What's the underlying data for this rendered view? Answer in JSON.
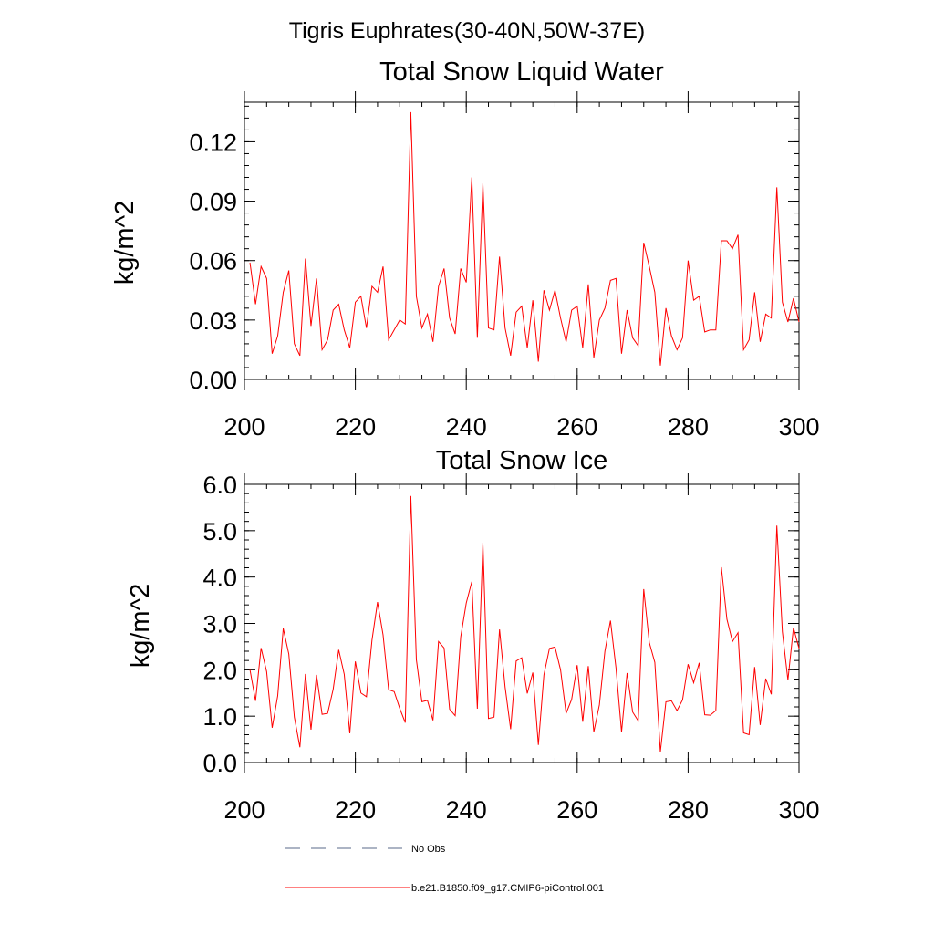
{
  "page_title": "Tigris Euphrates(30-40N,50W-37E)",
  "chart_data": [
    {
      "type": "line",
      "title": "Total Snow Liquid Water",
      "xlabel": "",
      "ylabel": "kg/m^2",
      "xlim": [
        200,
        300
      ],
      "ylim": [
        0,
        0.14
      ],
      "xticks": [
        200,
        220,
        240,
        260,
        280,
        300
      ],
      "xtick_labels": [
        "200",
        "220",
        "240",
        "260",
        "280",
        "300"
      ],
      "yticks": [
        0,
        0.03,
        0.06,
        0.09,
        0.12
      ],
      "ytick_labels": [
        "0.00",
        "0.03",
        "0.06",
        "0.09",
        "0.12"
      ],
      "series": [
        {
          "name": "b.e21.B1850.f09_g17.CMIP6-piControl.001",
          "color": "#ff0000",
          "x_start": 201,
          "x_step": 1,
          "values": [
            0.059,
            0.038,
            0.057,
            0.051,
            0.013,
            0.022,
            0.044,
            0.055,
            0.018,
            0.012,
            0.061,
            0.027,
            0.051,
            0.015,
            0.02,
            0.035,
            0.038,
            0.025,
            0.016,
            0.039,
            0.042,
            0.026,
            0.047,
            0.044,
            0.057,
            0.02,
            0.025,
            0.03,
            0.028,
            0.135,
            0.042,
            0.026,
            0.033,
            0.019,
            0.047,
            0.056,
            0.031,
            0.023,
            0.056,
            0.049,
            0.102,
            0.021,
            0.099,
            0.026,
            0.025,
            0.062,
            0.026,
            0.012,
            0.034,
            0.037,
            0.016,
            0.04,
            0.009,
            0.045,
            0.035,
            0.045,
            0.031,
            0.019,
            0.035,
            0.037,
            0.016,
            0.048,
            0.011,
            0.03,
            0.036,
            0.05,
            0.051,
            0.013,
            0.035,
            0.021,
            0.017,
            0.069,
            0.057,
            0.044,
            0.007,
            0.036,
            0.022,
            0.015,
            0.021,
            0.06,
            0.04,
            0.042,
            0.024,
            0.025,
            0.025,
            0.07,
            0.07,
            0.066,
            0.073,
            0.015,
            0.02,
            0.044,
            0.019,
            0.033,
            0.031,
            0.097,
            0.039,
            0.029,
            0.041,
            0.029
          ]
        }
      ]
    },
    {
      "type": "line",
      "title": "Total Snow Ice",
      "xlabel": "",
      "ylabel": "kg/m^2",
      "xlim": [
        200,
        300
      ],
      "ylim": [
        0,
        6.0
      ],
      "xticks": [
        200,
        220,
        240,
        260,
        280,
        300
      ],
      "xtick_labels": [
        "200",
        "220",
        "240",
        "260",
        "280",
        "300"
      ],
      "yticks": [
        0,
        1,
        2,
        3,
        4,
        5,
        6
      ],
      "ytick_labels": [
        "0.0",
        "1.0",
        "2.0",
        "3.0",
        "4.0",
        "5.0",
        "6.0"
      ],
      "series": [
        {
          "name": "b.e21.B1850.f09_g17.CMIP6-piControl.001",
          "color": "#ff0000",
          "x_start": 201,
          "x_step": 1,
          "values": [
            2.0,
            1.33,
            2.47,
            1.96,
            0.75,
            1.44,
            2.89,
            2.34,
            0.98,
            0.33,
            1.91,
            0.71,
            1.89,
            1.04,
            1.06,
            1.58,
            2.43,
            1.9,
            0.63,
            2.18,
            1.5,
            1.42,
            2.64,
            3.46,
            2.75,
            1.57,
            1.53,
            1.17,
            0.86,
            5.75,
            2.22,
            1.31,
            1.34,
            0.91,
            2.61,
            2.47,
            1.15,
            1.01,
            2.71,
            3.44,
            3.9,
            1.16,
            4.74,
            0.95,
            0.98,
            2.87,
            1.63,
            0.72,
            2.19,
            2.26,
            1.49,
            1.94,
            0.38,
            1.89,
            2.46,
            2.49,
            2.0,
            1.06,
            1.36,
            2.1,
            0.88,
            2.08,
            0.66,
            1.24,
            2.4,
            3.06,
            2.04,
            0.66,
            1.93,
            1.09,
            0.9,
            3.74,
            2.59,
            2.16,
            0.23,
            1.31,
            1.33,
            1.12,
            1.35,
            2.12,
            1.72,
            2.15,
            1.03,
            1.02,
            1.12,
            4.21,
            3.09,
            2.61,
            2.8,
            0.64,
            0.6,
            2.06,
            0.81,
            1.81,
            1.47,
            5.11,
            2.82,
            1.78,
            2.91,
            2.46
          ]
        }
      ]
    }
  ],
  "legend": [
    {
      "label": "No Obs",
      "style": "dashed",
      "color": "#5a6a8a"
    },
    {
      "label": "b.e21.B1850.f09_g17.CMIP6-piControl.001",
      "style": "solid",
      "color": "#ff0000"
    }
  ]
}
